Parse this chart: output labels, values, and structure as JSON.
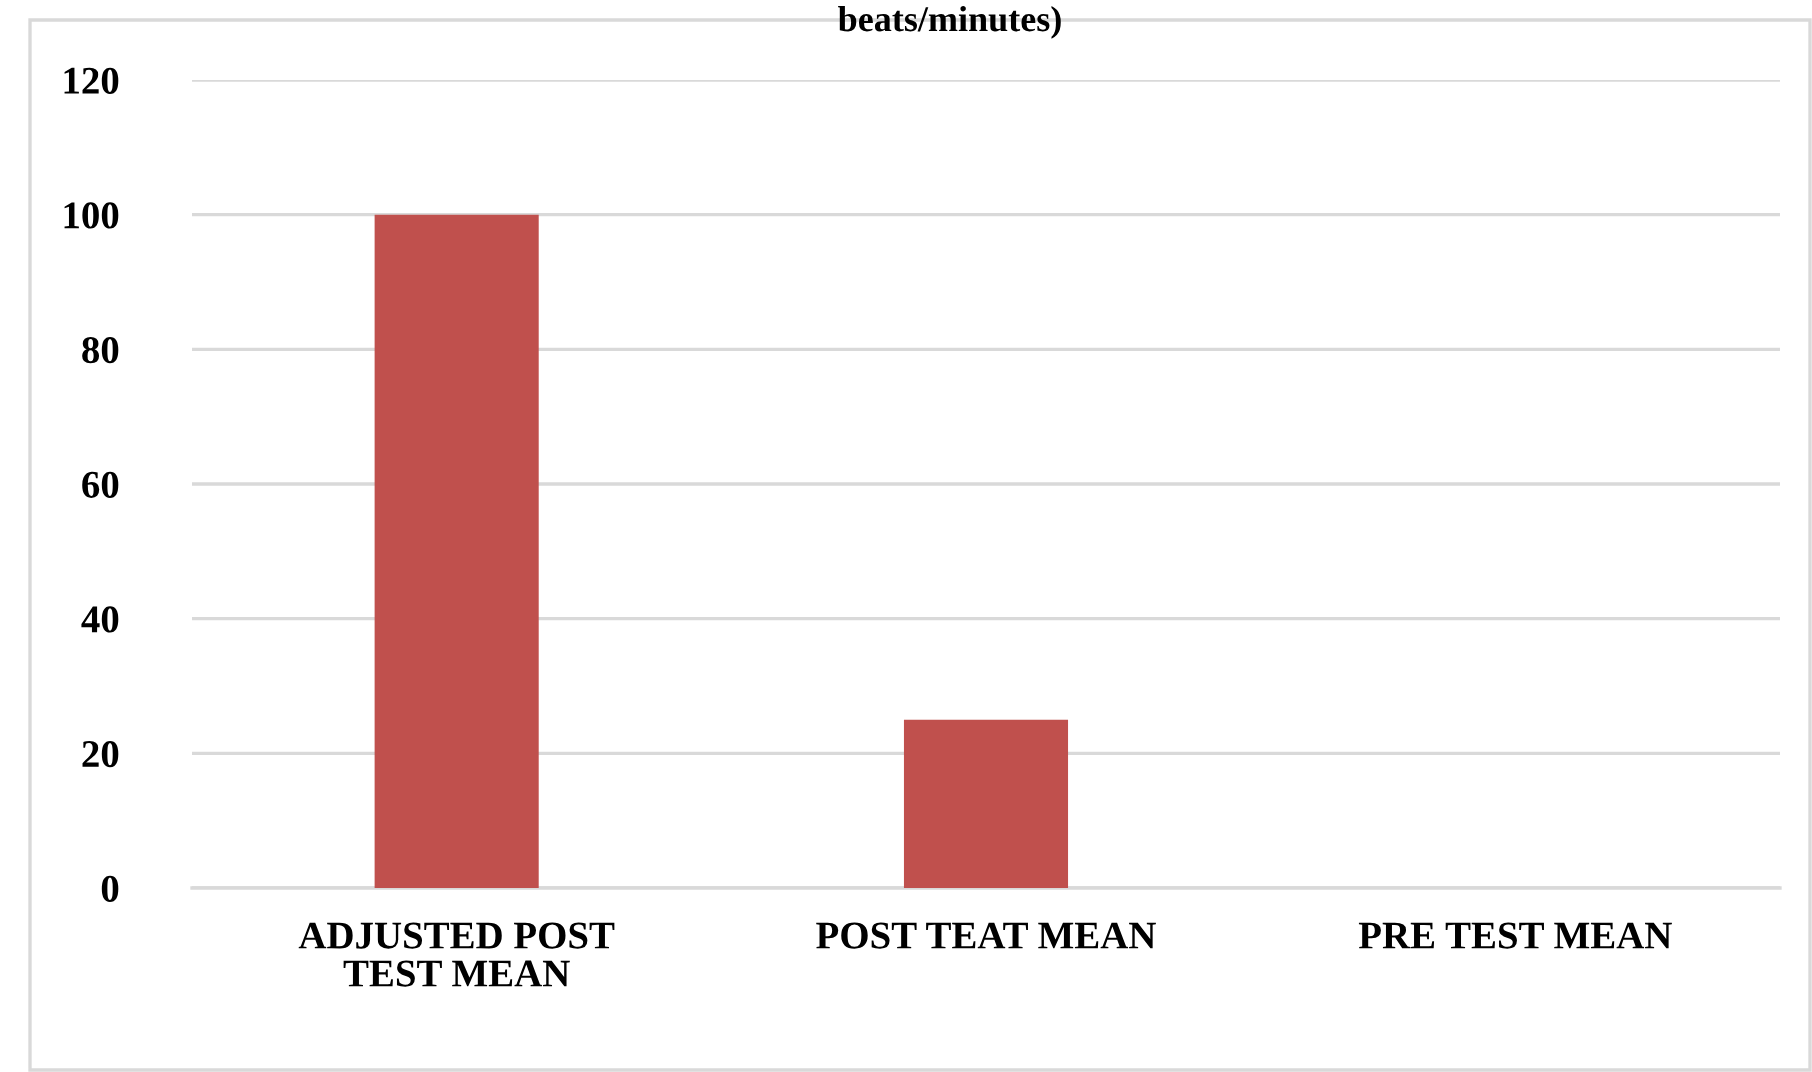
{
  "chart_data": {
    "type": "bar",
    "title": "beats/minutes)",
    "categories": [
      "ADJUSTED POST\nTEST MEAN",
      "POST TEAT MEAN",
      "PRE TEST MEAN"
    ],
    "values": [
      100,
      25,
      0
    ],
    "color": "#c0504d",
    "ylim": [
      0,
      120
    ],
    "yticks": [
      0,
      20,
      40,
      60,
      80,
      100,
      120
    ],
    "grid": "y"
  }
}
